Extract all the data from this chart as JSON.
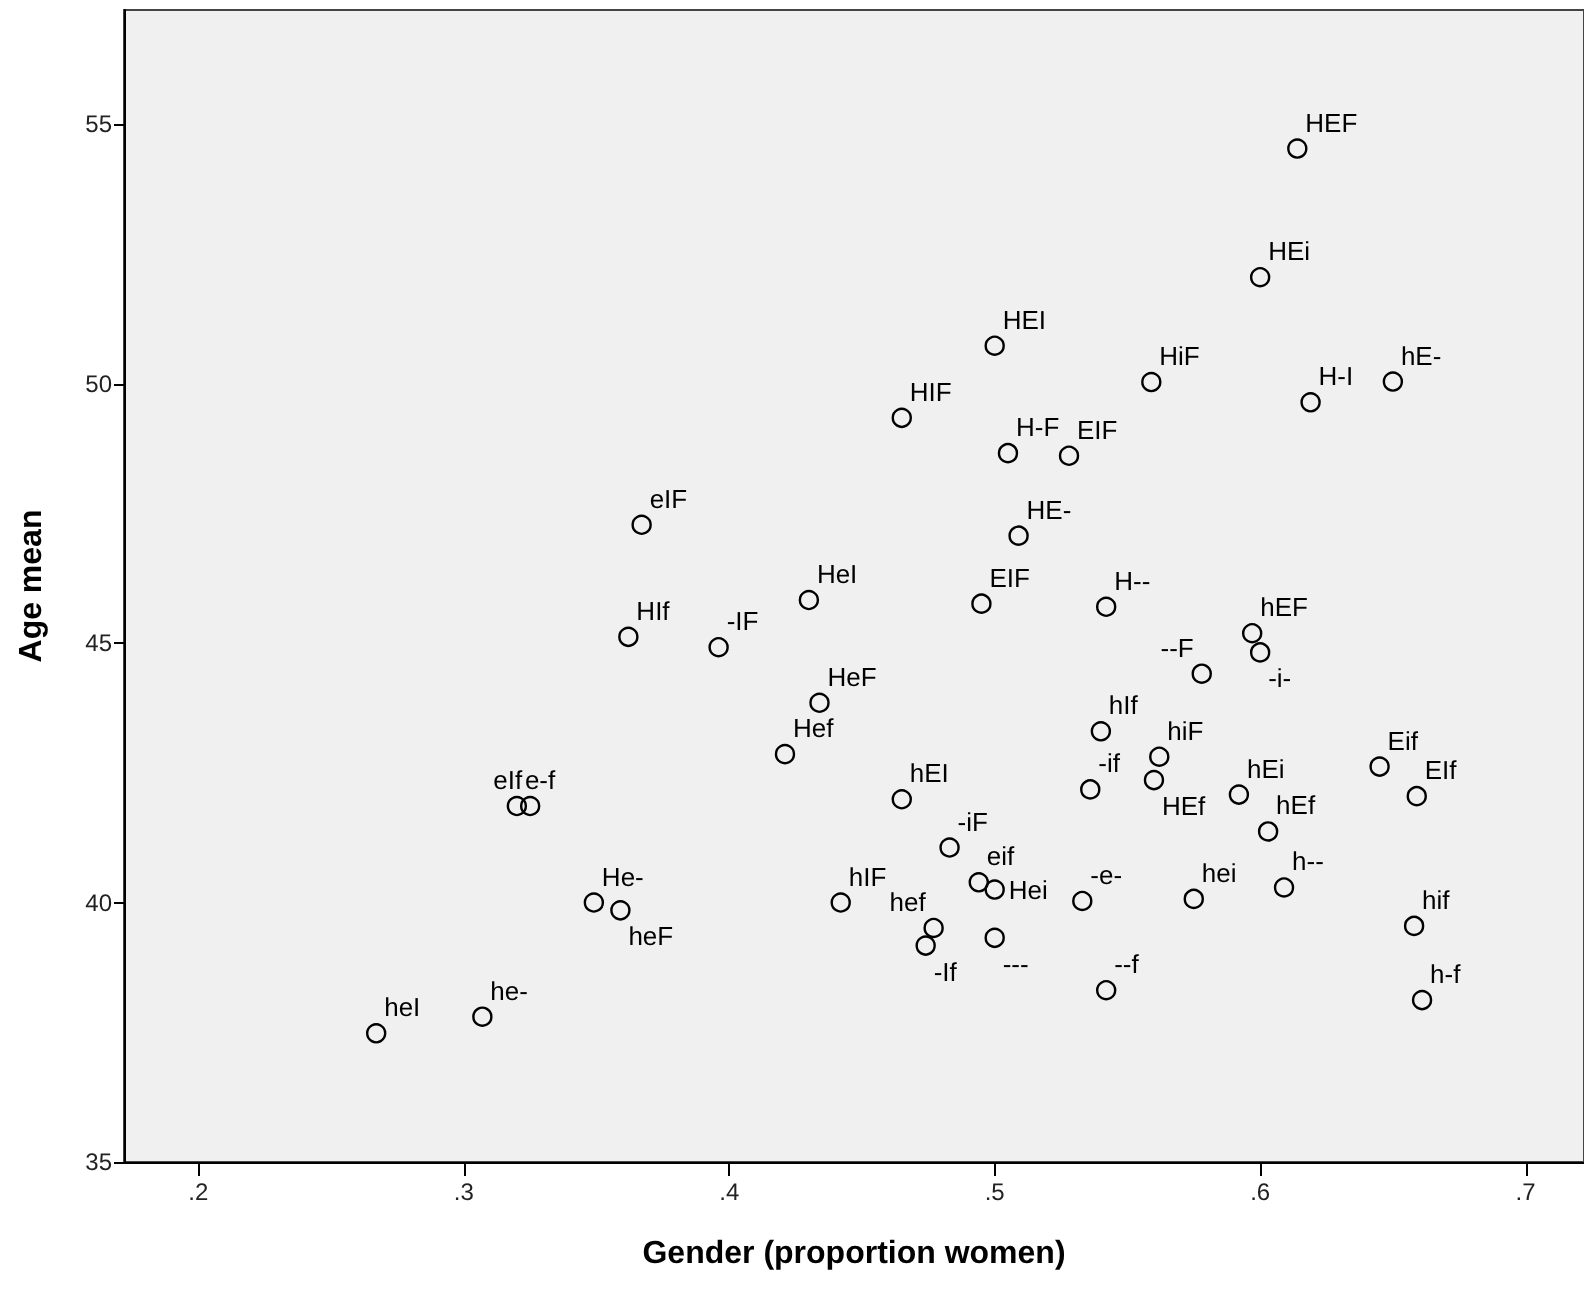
{
  "chart_data": {
    "type": "scatter",
    "xlabel": "Gender (proportion women)",
    "ylabel": "Age mean",
    "x": [
      0.614,
      0.6,
      0.5,
      0.559,
      0.619,
      0.65,
      0.465,
      0.505,
      0.528,
      0.509,
      0.367,
      0.43,
      0.362,
      0.396,
      0.434,
      0.421,
      0.32,
      0.325,
      0.349,
      0.359,
      0.267,
      0.307,
      0.442,
      0.495,
      0.542,
      0.597,
      0.6,
      0.578,
      0.54,
      0.562,
      0.536,
      0.56,
      0.592,
      0.603,
      0.645,
      0.659,
      0.465,
      0.483,
      0.494,
      0.5,
      0.477,
      0.474,
      0.5,
      0.533,
      0.575,
      0.609,
      0.658,
      0.661,
      0.542
    ],
    "values": [
      54.53,
      52.05,
      50.73,
      50.03,
      49.64,
      50.04,
      49.34,
      48.66,
      48.61,
      47.07,
      47.28,
      45.83,
      45.12,
      44.92,
      43.85,
      42.86,
      41.86,
      41.86,
      40.0,
      39.85,
      37.48,
      37.8,
      40.0,
      45.76,
      45.7,
      45.19,
      44.82,
      44.41,
      43.3,
      42.81,
      42.18,
      42.36,
      42.08,
      41.37,
      42.62,
      42.05,
      41.99,
      41.06,
      40.39,
      40.25,
      39.51,
      39.17,
      39.32,
      40.03,
      40.07,
      40.29,
      39.55,
      38.12,
      38.31
    ],
    "value_labels": [
      "HEF",
      "HEi",
      "HEI",
      "HiF",
      "H-I",
      "hE-",
      "HIF",
      "H-F",
      "EIF",
      "HE-",
      "eIF",
      "HeI",
      "HIf",
      "-IF",
      "HeF",
      "Hef",
      "e-f",
      "eIf",
      "He-",
      "heF",
      "heI",
      "he-",
      "hIF",
      "EIF",
      "H--",
      "hEF",
      "-i-",
      "--F",
      "hIf",
      "hiF",
      "-if",
      "HEf",
      "hEi",
      "hEf",
      "Eif",
      "EIf",
      "hEI",
      "-iF",
      "eif",
      "Hei",
      "hef",
      "-If",
      "---",
      "-e-",
      "hei",
      "h--",
      "hif",
      "h-f",
      "--f"
    ],
    "color": "#000000",
    "marker": "circle",
    "grid": false,
    "xlim": [
      0.172,
      0.722
    ],
    "xticks": [
      {
        "value": 0.2,
        "label": ".2"
      },
      {
        "value": 0.3,
        "label": ".3"
      },
      {
        "value": 0.4,
        "label": ".4"
      },
      {
        "value": 0.5,
        "label": ".5"
      },
      {
        "value": 0.6,
        "label": ".6"
      },
      {
        "value": 0.7,
        "label": ".7"
      }
    ],
    "ylim": [
      35,
      57.2
    ],
    "yticks": [
      35,
      40,
      45,
      50,
      55
    ]
  }
}
